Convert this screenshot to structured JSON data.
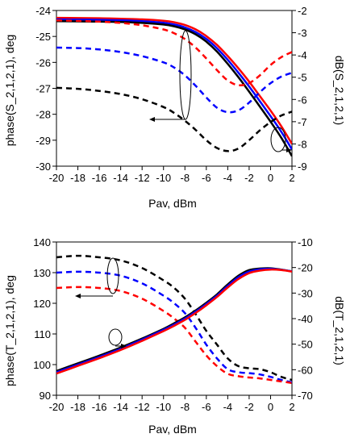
{
  "chart_data": [
    {
      "type": "line",
      "xlabel": "Pav, dBm",
      "ylabel": "phase(S_2,1,2,1), deg",
      "y2label": "dB(S_2,1,2,1)",
      "xlim": [
        -20,
        2
      ],
      "ylim": [
        -30,
        -24
      ],
      "y2lim": [
        -9,
        -2
      ],
      "xticks": [
        "-20",
        "-18",
        "-16",
        "-14",
        "-12",
        "-10",
        "-8",
        "-6",
        "-4",
        "-2",
        "0",
        "2"
      ],
      "yticks": [
        "-30",
        "-29",
        "-28",
        "-27",
        "-26",
        "-25",
        "-24"
      ],
      "y2ticks": [
        "-9",
        "-8",
        "-7",
        "-6",
        "-5",
        "-4",
        "-3",
        "-2"
      ],
      "grid": false,
      "x": [
        -20,
        -18,
        -16,
        -14,
        -12,
        -10,
        -9,
        -8,
        -7,
        -6,
        -5,
        -4,
        -3,
        -2,
        -1,
        0,
        1,
        2
      ],
      "series": [
        {
          "color": "#ff0000",
          "dash": "solid",
          "axis": "right",
          "values": [
            -2.33,
            -2.34,
            -2.35,
            -2.37,
            -2.4,
            -2.46,
            -2.53,
            -2.65,
            -2.85,
            -3.15,
            -3.55,
            -4.05,
            -4.6,
            -5.2,
            -5.85,
            -6.5,
            -7.2,
            -8.0
          ]
        },
        {
          "color": "#0000ff",
          "dash": "solid",
          "axis": "right",
          "values": [
            -2.4,
            -2.41,
            -2.42,
            -2.44,
            -2.48,
            -2.55,
            -2.63,
            -2.76,
            -2.97,
            -3.28,
            -3.7,
            -4.22,
            -4.8,
            -5.42,
            -6.08,
            -6.75,
            -7.45,
            -8.25
          ]
        },
        {
          "color": "#000000",
          "dash": "solid",
          "axis": "right",
          "values": [
            -2.48,
            -2.49,
            -2.5,
            -2.52,
            -2.56,
            -2.63,
            -2.71,
            -2.85,
            -3.07,
            -3.4,
            -3.85,
            -4.4,
            -5.0,
            -5.65,
            -6.32,
            -7.0,
            -7.72,
            -8.55
          ]
        },
        {
          "color": "#ff0000",
          "dash": "dashed",
          "axis": "left",
          "values": [
            -24.38,
            -24.4,
            -24.43,
            -24.48,
            -24.57,
            -24.73,
            -24.88,
            -25.1,
            -25.43,
            -25.85,
            -26.3,
            -26.7,
            -26.88,
            -26.8,
            -26.5,
            -26.1,
            -25.8,
            -25.6
          ]
        },
        {
          "color": "#0000ff",
          "dash": "dashed",
          "axis": "left",
          "values": [
            -25.43,
            -25.45,
            -25.5,
            -25.6,
            -25.76,
            -26.0,
            -26.2,
            -26.5,
            -26.9,
            -27.35,
            -27.75,
            -27.92,
            -27.85,
            -27.55,
            -27.15,
            -26.8,
            -26.55,
            -26.4
          ]
        },
        {
          "color": "#000000",
          "dash": "dashed",
          "axis": "left",
          "values": [
            -26.98,
            -27.02,
            -27.1,
            -27.22,
            -27.42,
            -27.72,
            -27.95,
            -28.25,
            -28.6,
            -29.0,
            -29.3,
            -29.42,
            -29.32,
            -29.0,
            -28.62,
            -28.3,
            -28.05,
            -27.9
          ]
        }
      ]
    },
    {
      "type": "line",
      "xlabel": "Pav, dBm",
      "ylabel": "phase(T_2,1,2,1), deg",
      "y2label": "dB(T_2,1,2,1)",
      "xlim": [
        -20,
        2
      ],
      "ylim": [
        90,
        140
      ],
      "y2lim": [
        -70,
        -10
      ],
      "xticks": [
        "-20",
        "-18",
        "-16",
        "-14",
        "-12",
        "-10",
        "-8",
        "-6",
        "-4",
        "-2",
        "0",
        "2"
      ],
      "yticks": [
        "90",
        "100",
        "110",
        "120",
        "130",
        "140"
      ],
      "y2ticks": [
        "-70",
        "-60",
        "-50",
        "-40",
        "-30",
        "-20",
        "-10"
      ],
      "grid": false,
      "x": [
        -20,
        -18,
        -16,
        -14,
        -12,
        -10,
        -9,
        -8,
        -7,
        -6,
        -5,
        -4,
        -3,
        -2,
        -1,
        0,
        1,
        2
      ],
      "series": [
        {
          "color": "#000000",
          "dash": "dashed",
          "axis": "left",
          "values": [
            135,
            135.5,
            135,
            134,
            131.5,
            127.5,
            125,
            121.5,
            116.5,
            111,
            106.5,
            102,
            99.5,
            98.8,
            98.5,
            97.5,
            96,
            95
          ]
        },
        {
          "color": "#0000ff",
          "dash": "dashed",
          "axis": "left",
          "values": [
            130,
            130.3,
            130,
            129,
            126.5,
            122.5,
            120,
            116.8,
            112,
            106.5,
            102,
            98.5,
            97.5,
            97.2,
            96.8,
            96,
            95,
            94.2
          ]
        },
        {
          "color": "#ff0000",
          "dash": "dashed",
          "axis": "left",
          "values": [
            125,
            125.3,
            125,
            124,
            121.5,
            117.5,
            115,
            112,
            107.5,
            103,
            99.5,
            97,
            96.2,
            95.8,
            95.5,
            95,
            94.5,
            94
          ]
        },
        {
          "color": "#000000",
          "dash": "solid",
          "axis": "right",
          "values": [
            -60.5,
            -57.5,
            -54.5,
            -51.3,
            -47.8,
            -44,
            -41.8,
            -39.5,
            -36.8,
            -33.8,
            -30.5,
            -26.6,
            -23.2,
            -21,
            -20.4,
            -20.3,
            -20.8,
            -21.5
          ]
        },
        {
          "color": "#0000ff",
          "dash": "solid",
          "axis": "right",
          "values": [
            -61,
            -58,
            -55,
            -51.8,
            -48.2,
            -44.4,
            -42.3,
            -40,
            -37.3,
            -34.3,
            -31,
            -27.2,
            -23.8,
            -21.6,
            -20.7,
            -20.5,
            -20.9,
            -21.5
          ]
        },
        {
          "color": "#ff0000",
          "dash": "solid",
          "axis": "right",
          "values": [
            -61.5,
            -58.5,
            -55.5,
            -52.3,
            -48.7,
            -44.9,
            -42.8,
            -40.5,
            -37.8,
            -34.8,
            -31.5,
            -27.8,
            -24.5,
            -22.2,
            -21.2,
            -20.8,
            -21,
            -21.6
          ]
        }
      ]
    }
  ]
}
